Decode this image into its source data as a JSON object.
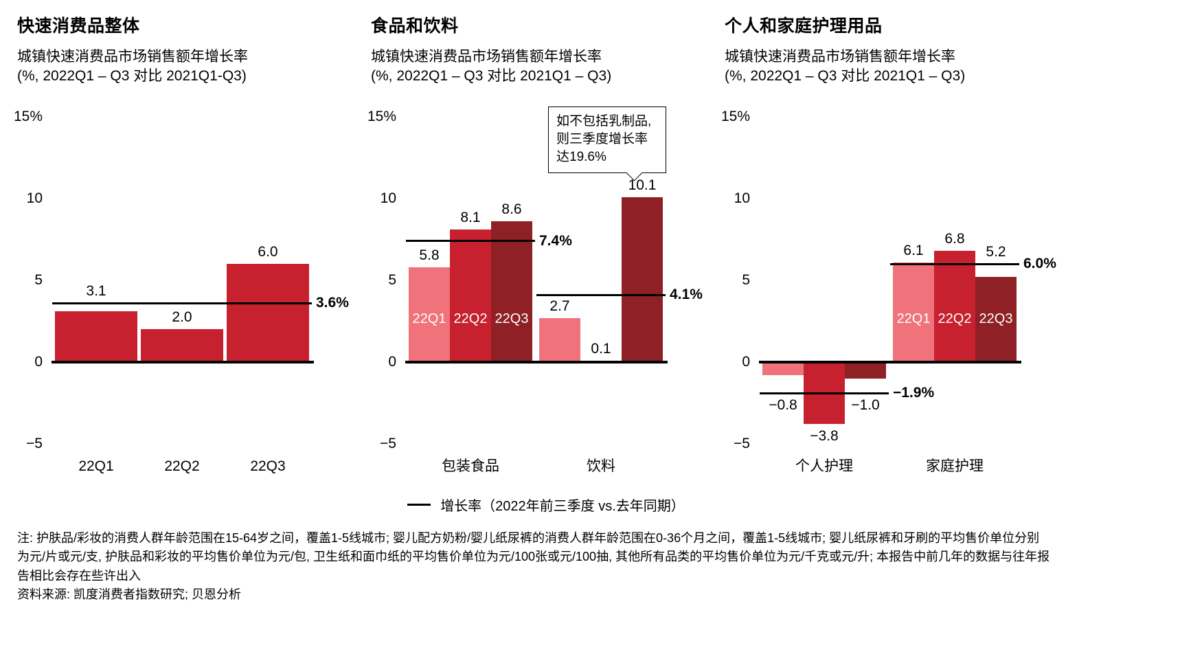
{
  "legend": {
    "label": "增长率（2022年前三季度 vs.去年同期）"
  },
  "footnote": {
    "note": "注: 护肤品/彩妆的消费人群年龄范围在15-64岁之间，覆盖1-5线城市; 婴儿配方奶粉/婴儿纸尿裤的消费人群年龄范围在0-36个月之间，覆盖1-5线城市; 婴儿纸尿裤和牙刷的平均售价单位分别为元/片或元/支, 护肤品和彩妆的平均售价单位为元/包, 卫生纸和面巾纸的平均售价单位为元/100张或元/100抽, 其他所有品类的平均售价单位为元/千克或元/升; 本报告中前几年的数据与往年报告相比会存在些许出入",
    "source": "资料来源: 凯度消费者指数研究; 贝恩分析"
  },
  "colors": {
    "q1_light_red": "#f0737b",
    "q2_medium_red": "#c7202e",
    "q3_dark_red": "#8e2026",
    "line_black": "#000000"
  },
  "chart_data": [
    {
      "type": "bar",
      "title": "快速消费品整体",
      "subtitle": "城镇快速消费品市场销售额年增长率\n(%, 2022Q1 – Q3 对比 2021Q1-Q3)",
      "ylabel": "%",
      "ylim": [
        -5,
        15
      ],
      "yticks": [
        {
          "value": 15,
          "label": "15%"
        },
        {
          "value": 10,
          "label": "10"
        },
        {
          "value": 5,
          "label": "5"
        },
        {
          "value": 0,
          "label": "0"
        },
        {
          "value": -5,
          "label": "−5"
        }
      ],
      "groups": [
        {
          "category": null,
          "bars": [
            {
              "quarter": "22Q1",
              "value": 3.1,
              "display": "3.1",
              "color": "#c7202e",
              "axis_label": "22Q1"
            },
            {
              "quarter": "22Q2",
              "value": 2.0,
              "display": "2.0",
              "color": "#c7202e",
              "axis_label": "22Q2"
            },
            {
              "quarter": "22Q3",
              "value": 6.0,
              "display": "6.0",
              "color": "#c7202e",
              "axis_label": "22Q3"
            }
          ],
          "avg_line": {
            "value": 3.6,
            "label": "3.6%"
          }
        }
      ]
    },
    {
      "type": "bar",
      "title": "食品和饮料",
      "subtitle": "城镇快速消费品市场销售额年增长率\n(%, 2022Q1 – Q3 对比 2021Q1 – Q3)",
      "ylabel": "%",
      "ylim": [
        -5,
        15
      ],
      "yticks": [
        {
          "value": 15,
          "label": "15%"
        },
        {
          "value": 10,
          "label": "10"
        },
        {
          "value": 5,
          "label": "5"
        },
        {
          "value": 0,
          "label": "0"
        },
        {
          "value": -5,
          "label": "−5"
        }
      ],
      "annotation": {
        "text": "如不包括乳制品,\n则三季度增长率\n达19.6%"
      },
      "groups": [
        {
          "category": "包装食品",
          "bars": [
            {
              "quarter": "22Q1",
              "value": 5.8,
              "display": "5.8",
              "color": "#f0737b",
              "inner_label": "22Q1"
            },
            {
              "quarter": "22Q2",
              "value": 8.1,
              "display": "8.1",
              "color": "#c7202e",
              "inner_label": "22Q2"
            },
            {
              "quarter": "22Q3",
              "value": 8.6,
              "display": "8.6",
              "color": "#8e2026",
              "inner_label": "22Q3"
            }
          ],
          "avg_line": {
            "value": 7.4,
            "label": "7.4%"
          }
        },
        {
          "category": "饮料",
          "bars": [
            {
              "quarter": "22Q1",
              "value": 2.7,
              "display": "2.7",
              "color": "#f0737b"
            },
            {
              "quarter": "22Q2",
              "value": 0.1,
              "display": "0.1",
              "color": "#c7202e"
            },
            {
              "quarter": "22Q3",
              "value": 10.1,
              "display": "10.1",
              "color": "#8e2026"
            }
          ],
          "avg_line": {
            "value": 4.1,
            "label": "4.1%"
          }
        }
      ]
    },
    {
      "type": "bar",
      "title": "个人和家庭护理用品",
      "subtitle": "城镇快速消费品市场销售额年增长率\n(%, 2022Q1 – Q3 对比 2021Q1 – Q3)",
      "ylabel": "%",
      "ylim": [
        -5,
        15
      ],
      "yticks": [
        {
          "value": 15,
          "label": "15%"
        },
        {
          "value": 10,
          "label": "10"
        },
        {
          "value": 5,
          "label": "5"
        },
        {
          "value": 0,
          "label": "0"
        },
        {
          "value": -5,
          "label": "−5"
        }
      ],
      "groups": [
        {
          "category": "个人护理",
          "bars": [
            {
              "quarter": "22Q1",
              "value": -0.8,
              "display": "−0.8",
              "color": "#f0737b"
            },
            {
              "quarter": "22Q2",
              "value": -3.8,
              "display": "−3.8",
              "color": "#c7202e"
            },
            {
              "quarter": "22Q3",
              "value": -1.0,
              "display": "−1.0",
              "color": "#8e2026"
            }
          ],
          "avg_line": {
            "value": -1.9,
            "label": "−1.9%"
          }
        },
        {
          "category": "家庭护理",
          "bars": [
            {
              "quarter": "22Q1",
              "value": 6.1,
              "display": "6.1",
              "color": "#f0737b",
              "inner_label": "22Q1"
            },
            {
              "quarter": "22Q2",
              "value": 6.8,
              "display": "6.8",
              "color": "#c7202e",
              "inner_label": "22Q2"
            },
            {
              "quarter": "22Q3",
              "value": 5.2,
              "display": "5.2",
              "color": "#8e2026",
              "inner_label": "22Q3"
            }
          ],
          "avg_line": {
            "value": 6.0,
            "label": "6.0%"
          }
        }
      ]
    }
  ]
}
